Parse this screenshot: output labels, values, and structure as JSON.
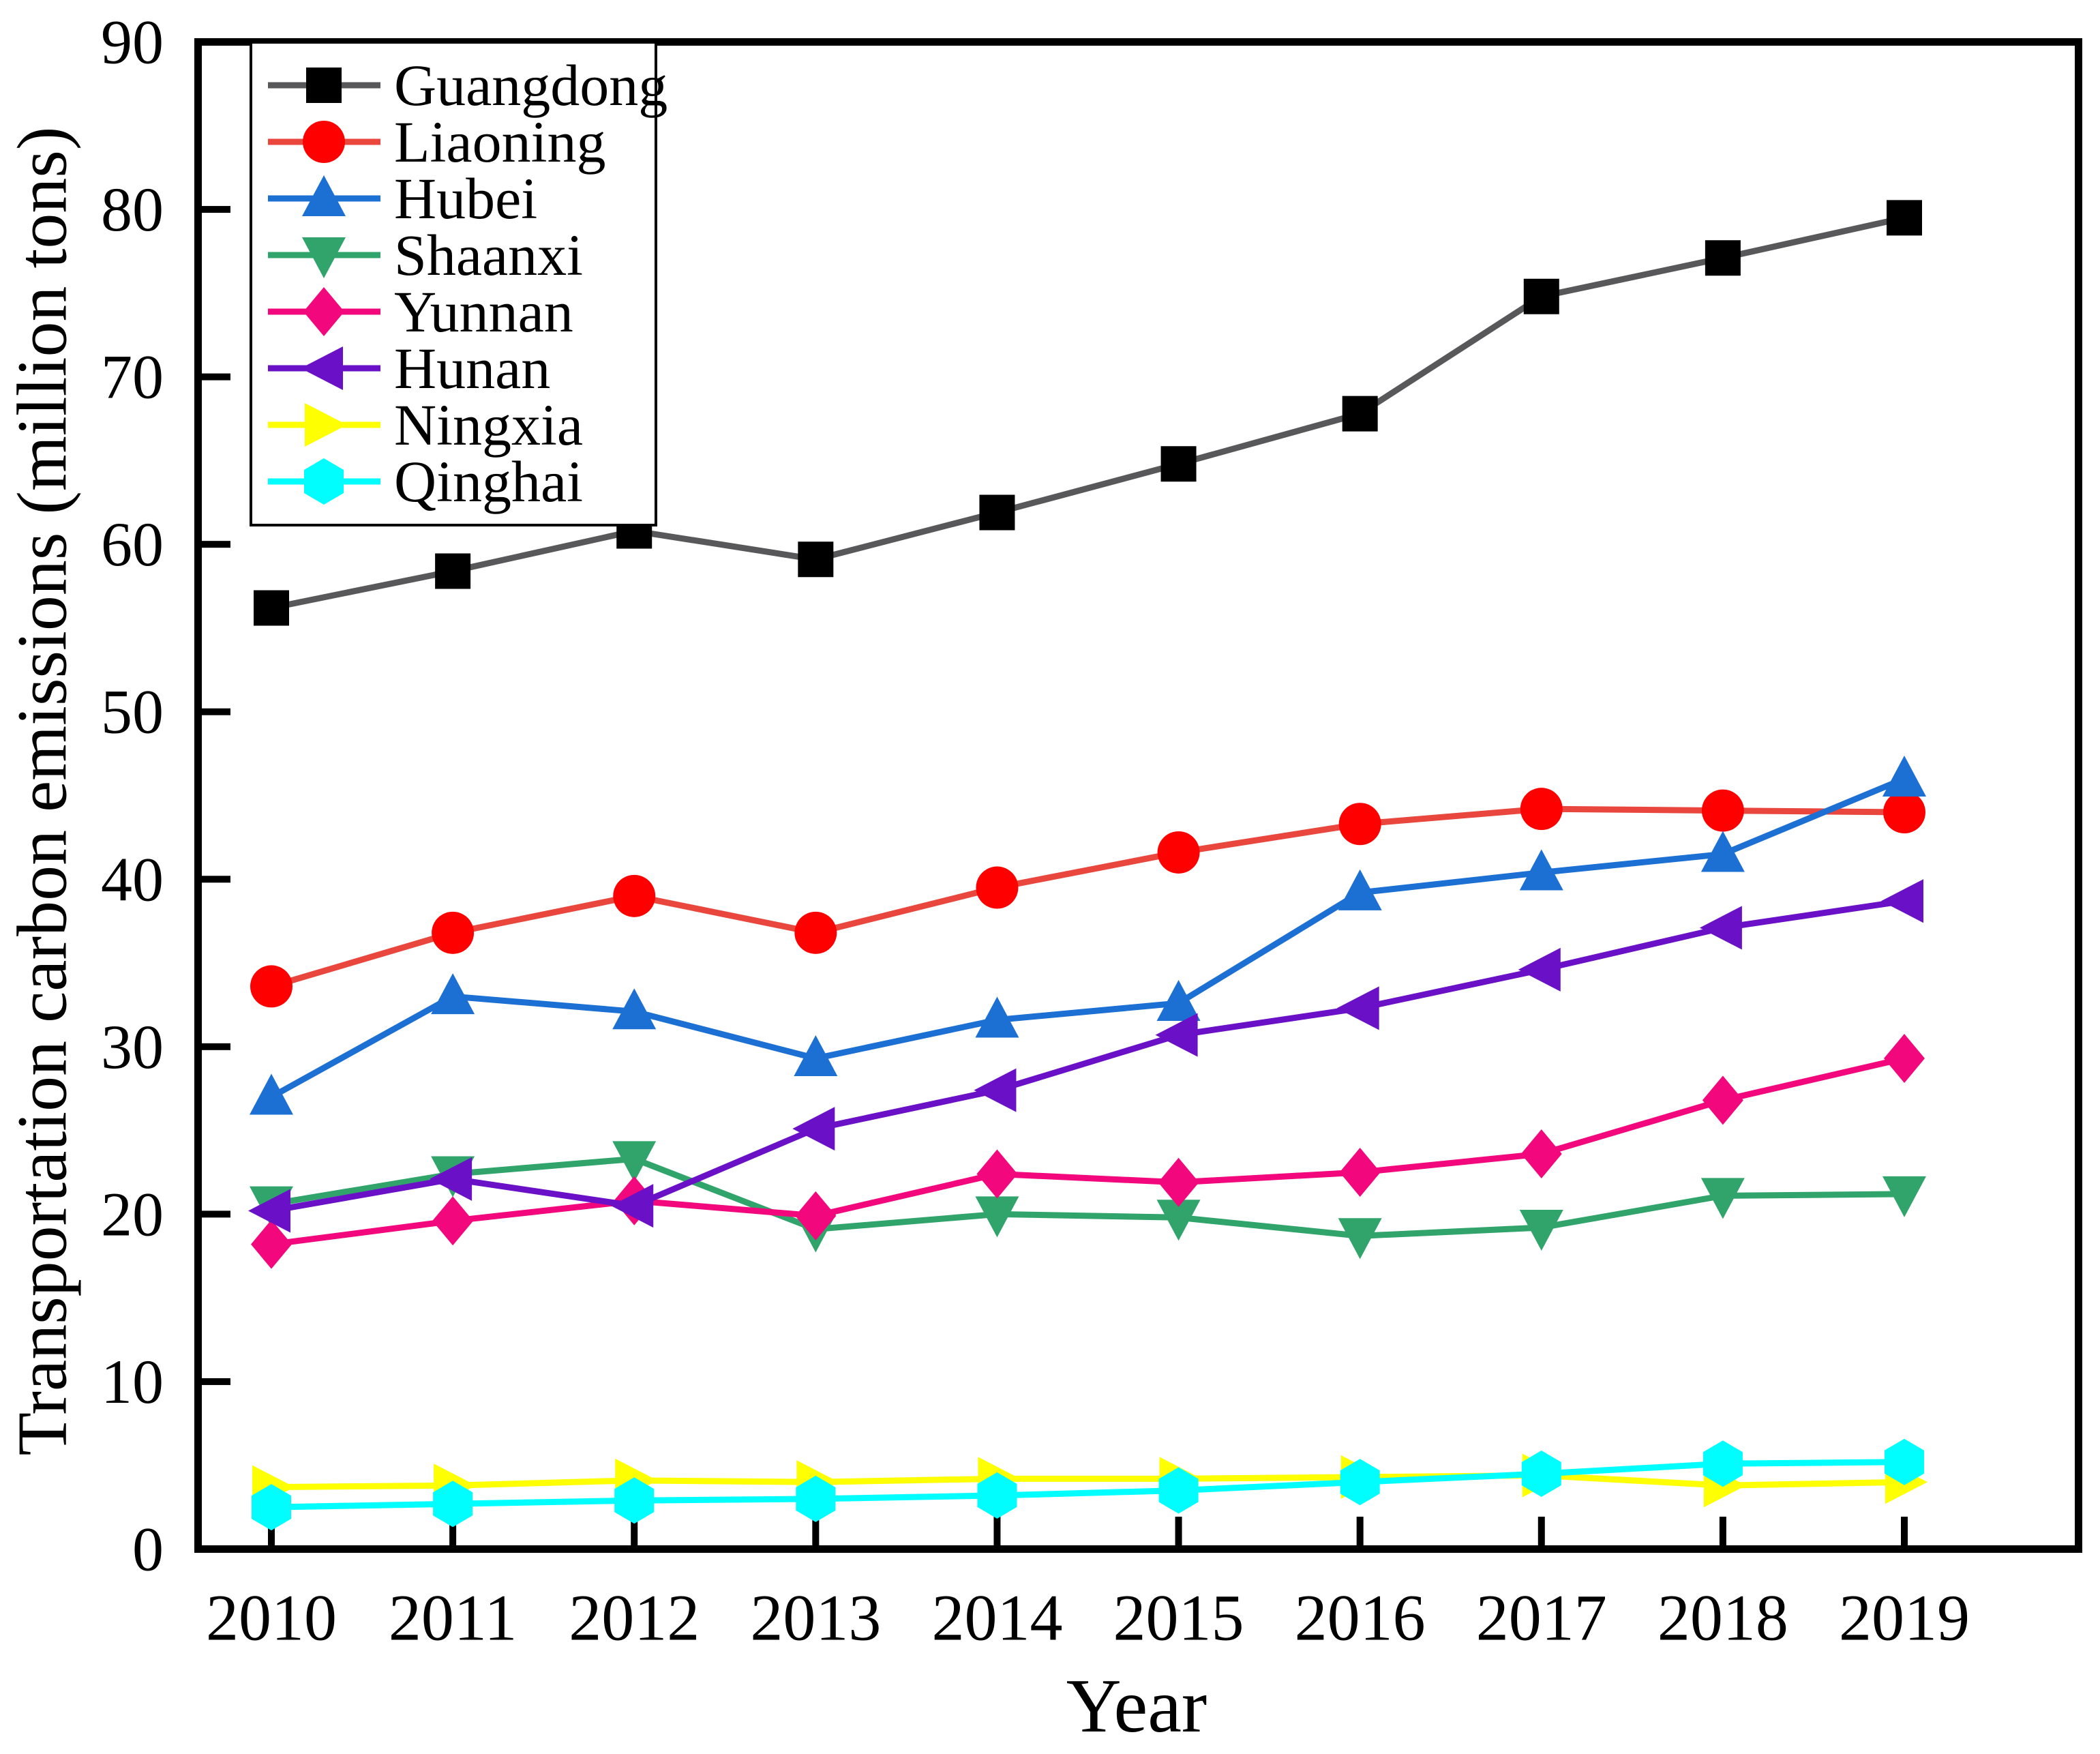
{
  "figure": {
    "background": "#ffffff",
    "axis_color": "#000000",
    "ylabel": "Transportation carbon emissions (million tons)",
    "xlabel": "Year"
  },
  "chart_data": {
    "type": "line",
    "title": "",
    "xlabel": "Year",
    "ylabel": "Transportation carbon emissions (million tons)",
    "x": [
      2010,
      2011,
      2012,
      2013,
      2014,
      2015,
      2016,
      2017,
      2018,
      2019
    ],
    "ylim": [
      0,
      90
    ],
    "yticks": [
      0,
      10,
      20,
      30,
      40,
      50,
      60,
      70,
      80,
      90
    ],
    "grid": false,
    "legend_position": "upper-left",
    "series": [
      {
        "name": "Guangdong",
        "marker": "square",
        "marker_color": "#000000",
        "line_color": "#58585a",
        "values": [
          56.2,
          58.4,
          60.8,
          59.1,
          61.9,
          64.8,
          67.8,
          74.8,
          77.1,
          79.5
        ]
      },
      {
        "name": "Liaoning",
        "marker": "circle",
        "marker_color": "#ff0000",
        "line_color": "#e9463d",
        "values": [
          33.6,
          36.8,
          39.0,
          36.8,
          39.5,
          41.6,
          43.3,
          44.2,
          44.1,
          44.0
        ]
      },
      {
        "name": "Hubei",
        "marker": "triangle-up",
        "marker_color": "#1c6fd3",
        "line_color": "#1c6fd3",
        "values": [
          27.0,
          33.0,
          32.1,
          29.3,
          31.6,
          32.6,
          39.2,
          40.4,
          41.5,
          46.0
        ]
      },
      {
        "name": "Shaanxi",
        "marker": "triangle-down",
        "marker_color": "#31a46c",
        "line_color": "#31a46c",
        "values": [
          20.6,
          22.4,
          23.3,
          19.1,
          20.0,
          19.8,
          18.7,
          19.2,
          21.1,
          21.2
        ]
      },
      {
        "name": "Yunnan",
        "marker": "diamond",
        "marker_color": "#f2077d",
        "line_color": "#f2077d",
        "values": [
          18.2,
          19.6,
          20.8,
          19.9,
          22.4,
          21.9,
          22.5,
          23.6,
          26.8,
          29.3
        ]
      },
      {
        "name": "Hunan",
        "marker": "triangle-left",
        "marker_color": "#6a10c6",
        "line_color": "#6a10c6",
        "values": [
          20.2,
          22.1,
          20.5,
          25.1,
          27.4,
          30.7,
          32.3,
          34.6,
          37.1,
          38.7
        ]
      },
      {
        "name": "Ningxia",
        "marker": "triangle-right",
        "marker_color": "#feff00",
        "line_color": "#feff00",
        "values": [
          3.7,
          3.8,
          4.1,
          4.0,
          4.2,
          4.2,
          4.3,
          4.4,
          3.8,
          4.0
        ]
      },
      {
        "name": "Qinghai",
        "marker": "hexagon",
        "marker_color": "#00fefe",
        "line_color": "#00fefe",
        "values": [
          2.5,
          2.7,
          2.9,
          3.0,
          3.2,
          3.5,
          4.0,
          4.5,
          5.1,
          5.2
        ]
      }
    ]
  }
}
